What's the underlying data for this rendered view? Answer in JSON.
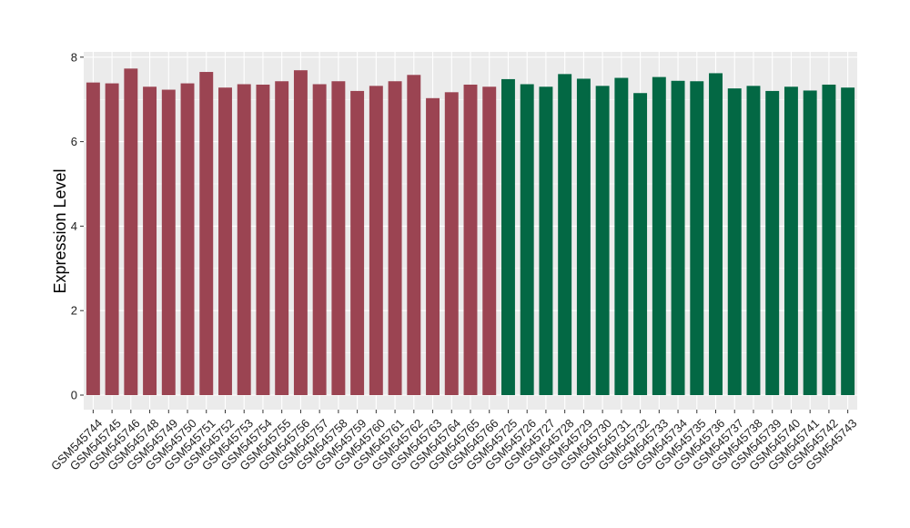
{
  "chart_data": {
    "type": "bar",
    "ylabel": "Expression Level",
    "xlabel": "",
    "ylim": [
      0,
      8
    ],
    "yticks": [
      0,
      2,
      4,
      6,
      8
    ],
    "grid": true,
    "colors": {
      "group1": "#9B4452",
      "group2": "#036844",
      "panel": "#EBEBEB",
      "gridline": "#FFFFFF"
    },
    "categories": [
      "GSM545744",
      "GSM545745",
      "GSM545746",
      "GSM545748",
      "GSM545749",
      "GSM545750",
      "GSM545751",
      "GSM545752",
      "GSM545753",
      "GSM545754",
      "GSM545755",
      "GSM545756",
      "GSM545757",
      "GSM545758",
      "GSM545759",
      "GSM545760",
      "GSM545761",
      "GSM545762",
      "GSM545763",
      "GSM545764",
      "GSM545765",
      "GSM545766",
      "GSM545725",
      "GSM545726",
      "GSM545727",
      "GSM545728",
      "GSM545729",
      "GSM545730",
      "GSM545731",
      "GSM545732",
      "GSM545733",
      "GSM545734",
      "GSM545735",
      "GSM545736",
      "GSM545737",
      "GSM545738",
      "GSM545739",
      "GSM545740",
      "GSM545741",
      "GSM545742",
      "GSM545743"
    ],
    "values": [
      7.4,
      7.38,
      7.73,
      7.3,
      7.23,
      7.38,
      7.65,
      7.28,
      7.36,
      7.35,
      7.43,
      7.69,
      7.36,
      7.43,
      7.2,
      7.32,
      7.43,
      7.58,
      7.03,
      7.17,
      7.35,
      7.3,
      7.48,
      7.36,
      7.3,
      7.6,
      7.49,
      7.32,
      7.51,
      7.15,
      7.53,
      7.44,
      7.43,
      7.62,
      7.26,
      7.32,
      7.2,
      7.3,
      7.21,
      7.35,
      7.28
    ],
    "groups": [
      1,
      1,
      1,
      1,
      1,
      1,
      1,
      1,
      1,
      1,
      1,
      1,
      1,
      1,
      1,
      1,
      1,
      1,
      1,
      1,
      1,
      1,
      2,
      2,
      2,
      2,
      2,
      2,
      2,
      2,
      2,
      2,
      2,
      2,
      2,
      2,
      2,
      2,
      2,
      2,
      2
    ]
  }
}
